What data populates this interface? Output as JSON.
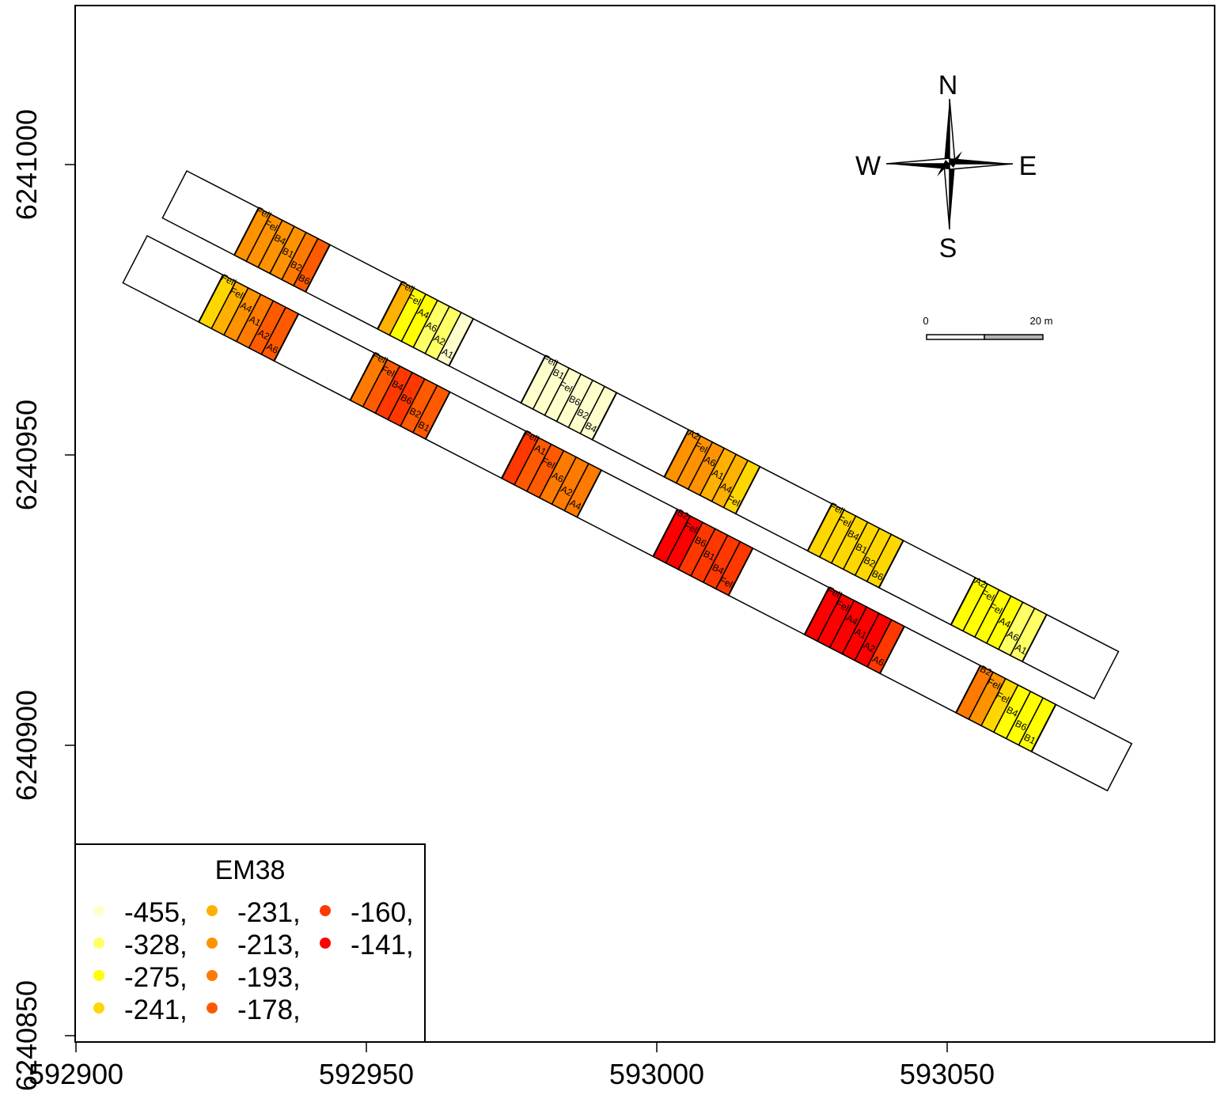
{
  "map": {
    "x_ticks": [
      "592900",
      "592950",
      "593000",
      "593050"
    ],
    "y_ticks": [
      "6240850",
      "6240900",
      "6240950",
      "6241000"
    ],
    "x_tick_values": [
      592900,
      592950,
      593000,
      593050
    ],
    "y_tick_values": [
      6240850,
      6240900,
      6240950,
      6241000
    ]
  },
  "compass": {
    "north": "N",
    "south": "S",
    "east": "E",
    "west": "W"
  },
  "scale_bar": {
    "start_label": "0",
    "end_label": "20 m",
    "length_m": 20
  },
  "legend": {
    "title": "EM38",
    "entries": [
      {
        "label": "-455,",
        "color": "#FFFFCC"
      },
      {
        "label": "-328,",
        "color": "#FFFF66"
      },
      {
        "label": "-275,",
        "color": "#FFFF00"
      },
      {
        "label": "-241,",
        "color": "#FFD700"
      },
      {
        "label": "-231,",
        "color": "#FFB000"
      },
      {
        "label": "-213,",
        "color": "#FF9200"
      },
      {
        "label": "-193,",
        "color": "#FF7A00"
      },
      {
        "label": "-178,",
        "color": "#FF5A00"
      },
      {
        "label": "-160,",
        "color": "#FF3800"
      },
      {
        "label": "-141,",
        "color": "#FF0000"
      }
    ]
  },
  "plot_blocks": [
    {
      "strip": "north",
      "color": "#FF9200",
      "labels": [
        "Fell",
        "Fell",
        "B4",
        "B1",
        "B2",
        "B6"
      ],
      "values": [
        -213,
        -213,
        -213,
        -213,
        -193,
        -178
      ]
    },
    {
      "strip": "north",
      "color": "#FFFF00",
      "labels": [
        "Fell",
        "Fell",
        "A4",
        "A6",
        "A2",
        "A1"
      ],
      "values": [
        -231,
        -275,
        -275,
        -328,
        -328,
        -455
      ]
    },
    {
      "strip": "north",
      "color": "#FFFFCC",
      "labels": [
        "Fell",
        "B1",
        "Fell",
        "B6",
        "B2",
        "B4"
      ],
      "values": [
        -455,
        -455,
        -455,
        -455,
        -455,
        -455
      ]
    },
    {
      "strip": "north",
      "color": "#FF9200",
      "labels": [
        "A2",
        "Fell",
        "A6",
        "A1",
        "A4",
        "Fell"
      ],
      "values": [
        -213,
        -213,
        -213,
        -231,
        -231,
        -241
      ]
    },
    {
      "strip": "north",
      "color": "#FFD700",
      "labels": [
        "Fell",
        "Fell",
        "B4",
        "B1",
        "B2",
        "B6"
      ],
      "values": [
        -241,
        -241,
        -241,
        -241,
        -241,
        -241
      ]
    },
    {
      "strip": "north",
      "color": "#FFFF00",
      "labels": [
        "A2",
        "Fell",
        "Fell",
        "A4",
        "A6",
        "A1"
      ],
      "values": [
        -275,
        -275,
        -275,
        -275,
        -328,
        -328
      ]
    },
    {
      "strip": "south",
      "color": "#FFD700",
      "labels": [
        "Fell",
        "Fell",
        "A4",
        "A1",
        "A2",
        "A6"
      ],
      "values": [
        -241,
        -231,
        -213,
        -193,
        -178,
        -178
      ]
    },
    {
      "strip": "south",
      "color": "#FF3800",
      "labels": [
        "Fell",
        "Fell",
        "B4",
        "B6",
        "B2",
        "B1"
      ],
      "values": [
        -193,
        -178,
        -160,
        -160,
        -178,
        -178
      ]
    },
    {
      "strip": "south",
      "color": "#FF7A00",
      "labels": [
        "Fell",
        "A1",
        "Fell",
        "A6",
        "A2",
        "A4"
      ],
      "values": [
        -160,
        -178,
        -178,
        -193,
        -193,
        -193
      ]
    },
    {
      "strip": "south",
      "color": "#FF0000",
      "labels": [
        "B2",
        "Fell",
        "B6",
        "B1",
        "B4",
        "Fell"
      ],
      "values": [
        -141,
        -141,
        -160,
        -160,
        -160,
        -160
      ]
    },
    {
      "strip": "south",
      "color": "#FF0000",
      "labels": [
        "Fell",
        "Fell",
        "A4",
        "A1",
        "A2",
        "A6"
      ],
      "values": [
        -141,
        -141,
        -141,
        -141,
        -141,
        -160
      ]
    },
    {
      "strip": "south",
      "color": "#FF7A00",
      "labels": [
        "B2",
        "Fell",
        "Fell",
        "B4",
        "B6",
        "B1"
      ],
      "values": [
        -193,
        -213,
        -241,
        -275,
        -275,
        -275
      ]
    }
  ]
}
